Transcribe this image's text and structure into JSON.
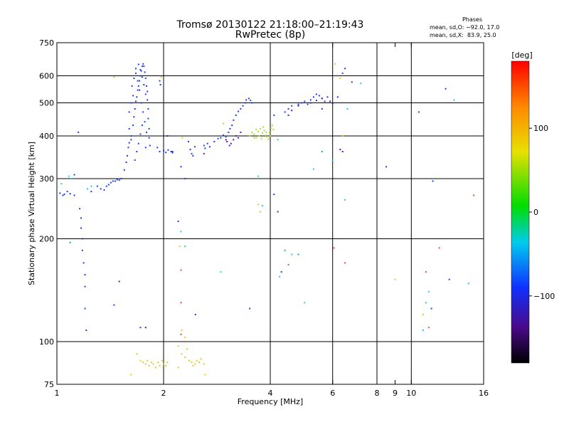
{
  "header": {
    "title_line1": "Tromsø 20130122 21:18:00–21:19:43",
    "title_line2": "RwPretec (8p)",
    "phases_title": "Phases",
    "phases_o": "mean, sd,O: −92.0, 17.0",
    "phases_x": "mean, sd,X:  83.9, 25.0"
  },
  "colorbar": {
    "label": "[deg]",
    "ticks": [
      "100",
      "0",
      "−100"
    ],
    "tick_values": [
      100,
      0,
      -100
    ],
    "range": [
      -180,
      180
    ]
  },
  "chart_data": {
    "type": "scatter",
    "xlabel": "Frequency [MHz]",
    "ylabel": "Stationary phase Virtual Height [km]",
    "x_scale": "log",
    "y_scale": "log",
    "xlim": [
      1,
      16
    ],
    "ylim": [
      75,
      750
    ],
    "x_ticks": [
      1,
      2,
      4,
      6,
      8,
      9,
      10,
      16
    ],
    "x_tick_labels": [
      "1",
      "2",
      "4",
      "6",
      "8",
      "9",
      "10",
      "16"
    ],
    "x_gridlines": [
      2,
      4,
      6,
      8,
      10
    ],
    "y_ticks": [
      75,
      100,
      200,
      300,
      400,
      500,
      600,
      750
    ],
    "y_tick_labels": [
      "75",
      "100",
      "200",
      "300",
      "400",
      "500",
      "600",
      "750"
    ],
    "y_gridlines": [
      100,
      200,
      300,
      400,
      500,
      600
    ],
    "grid": true,
    "series": [
      {
        "color": "#1b3fe6",
        "points": [
          [
            1.02,
            272
          ],
          [
            1.04,
            268
          ],
          [
            1.05,
            270
          ],
          [
            1.07,
            275
          ],
          [
            1.09,
            271
          ],
          [
            1.12,
            268
          ],
          [
            1.15,
            410
          ],
          [
            1.16,
            245
          ],
          [
            1.17,
            230
          ],
          [
            1.17,
            215
          ],
          [
            1.18,
            200
          ],
          [
            1.18,
            185
          ],
          [
            1.19,
            170
          ],
          [
            1.2,
            157
          ],
          [
            1.2,
            145
          ],
          [
            1.2,
            125
          ],
          [
            1.21,
            108
          ],
          [
            1.12,
            308
          ],
          [
            1.25,
            275
          ],
          [
            1.3,
            285
          ],
          [
            1.33,
            280
          ],
          [
            1.36,
            278
          ],
          [
            1.38,
            285
          ],
          [
            1.4,
            288
          ],
          [
            1.42,
            292
          ],
          [
            1.44,
            295
          ],
          [
            1.46,
            295
          ],
          [
            1.48,
            298
          ],
          [
            1.5,
            297
          ],
          [
            1.52,
            300
          ],
          [
            1.55,
            318
          ],
          [
            1.57,
            335
          ],
          [
            1.58,
            350
          ],
          [
            1.59,
            370
          ],
          [
            1.6,
            382
          ],
          [
            1.62,
            400
          ],
          [
            1.64,
            430
          ],
          [
            1.65,
            455
          ],
          [
            1.66,
            480
          ],
          [
            1.67,
            505
          ],
          [
            1.68,
            520
          ],
          [
            1.69,
            545
          ],
          [
            1.7,
            560
          ],
          [
            1.71,
            580
          ],
          [
            1.72,
            600
          ],
          [
            1.73,
            620
          ],
          [
            1.74,
            640
          ],
          [
            1.75,
            650
          ],
          [
            1.76,
            640
          ],
          [
            1.77,
            615
          ],
          [
            1.78,
            590
          ],
          [
            1.79,
            560
          ],
          [
            1.8,
            540
          ],
          [
            1.8,
            510
          ],
          [
            1.81,
            480
          ],
          [
            1.81,
            450
          ],
          [
            1.82,
            420
          ],
          [
            1.82,
            395
          ],
          [
            1.83,
            375
          ],
          [
            1.67,
            610
          ],
          [
            1.69,
            580
          ],
          [
            1.71,
            545
          ],
          [
            1.73,
            500
          ],
          [
            1.75,
            470
          ],
          [
            1.77,
            440
          ],
          [
            1.79,
            410
          ],
          [
            1.66,
            340
          ],
          [
            1.68,
            360
          ],
          [
            1.7,
            380
          ],
          [
            1.72,
            405
          ],
          [
            1.74,
            430
          ],
          [
            1.63,
            560
          ],
          [
            1.65,
            590
          ],
          [
            1.67,
            630
          ],
          [
            1.7,
            648
          ],
          [
            1.72,
            625
          ],
          [
            1.74,
            595
          ],
          [
            1.76,
            565
          ],
          [
            1.78,
            530
          ],
          [
            1.6,
            470
          ],
          [
            1.62,
            500
          ],
          [
            1.64,
            525
          ],
          [
            1.6,
            420
          ],
          [
            1.62,
            390
          ],
          [
            1.95,
            580
          ],
          [
            1.96,
            565
          ],
          [
            1.78,
            370
          ],
          [
            1.92,
            370
          ],
          [
            1.95,
            360
          ],
          [
            2.0,
            362
          ],
          [
            2.03,
            358
          ],
          [
            2.06,
            364
          ],
          [
            2.1,
            360
          ],
          [
            2.12,
            357
          ],
          [
            2.38,
            365
          ],
          [
            2.4,
            355
          ],
          [
            2.42,
            350
          ],
          [
            2.45,
            372
          ],
          [
            2.6,
            375
          ],
          [
            2.62,
            368
          ],
          [
            2.66,
            380
          ],
          [
            2.7,
            372
          ],
          [
            2.78,
            385
          ],
          [
            2.85,
            393
          ],
          [
            2.9,
            395
          ],
          [
            2.95,
            402
          ],
          [
            3.0,
            398
          ],
          [
            3.05,
            410
          ],
          [
            3.08,
            420
          ],
          [
            3.12,
            430
          ],
          [
            3.15,
            445
          ],
          [
            3.2,
            460
          ],
          [
            3.25,
            472
          ],
          [
            3.3,
            480
          ],
          [
            3.35,
            490
          ],
          [
            3.4,
            500
          ],
          [
            3.42,
            510
          ],
          [
            3.48,
            515
          ],
          [
            3.52,
            508
          ],
          [
            3.55,
            500
          ],
          [
            4.1,
            460
          ],
          [
            4.4,
            470
          ],
          [
            4.5,
            480
          ],
          [
            4.6,
            490
          ],
          [
            4.8,
            495
          ],
          [
            4.9,
            500
          ],
          [
            5.0,
            505
          ],
          [
            5.1,
            495
          ],
          [
            5.2,
            510
          ],
          [
            5.3,
            520
          ],
          [
            5.4,
            530
          ],
          [
            5.5,
            525
          ],
          [
            5.6,
            515
          ],
          [
            5.7,
            505
          ],
          [
            5.8,
            520
          ],
          [
            2.2,
            225
          ],
          [
            2.24,
            325
          ],
          [
            2.3,
            300
          ],
          [
            2.35,
            385
          ],
          [
            4.1,
            270
          ],
          [
            4.2,
            240
          ],
          [
            4.3,
            160
          ],
          [
            3.5,
            125
          ],
          [
            1.45,
            128
          ],
          [
            1.72,
            110
          ],
          [
            2.46,
            120
          ],
          [
            5.6,
            480
          ],
          [
            6.2,
            520
          ],
          [
            6.4,
            610
          ],
          [
            6.5,
            630
          ],
          [
            6.8,
            575
          ],
          [
            8.5,
            325
          ],
          [
            10.5,
            470
          ],
          [
            11.5,
            295
          ],
          [
            12.8,
            152
          ],
          [
            12.5,
            550
          ],
          [
            11.4,
            125
          ]
        ]
      },
      {
        "color": "#5a12a8",
        "points": [
          [
            1.5,
            150
          ],
          [
            1.78,
            110
          ],
          [
            2.05,
            400
          ],
          [
            2.12,
            360
          ],
          [
            3.0,
            390
          ],
          [
            3.02,
            385
          ],
          [
            3.07,
            375
          ],
          [
            3.1,
            380
          ],
          [
            3.15,
            390
          ],
          [
            3.2,
            400
          ],
          [
            3.25,
            395
          ],
          [
            3.3,
            410
          ],
          [
            4.5,
            460
          ],
          [
            4.6,
            475
          ],
          [
            4.8,
            490
          ],
          [
            5.2,
            500
          ],
          [
            5.4,
            508
          ],
          [
            5.6,
            515
          ],
          [
            5.9,
            505
          ],
          [
            6.0,
            498
          ],
          [
            6.3,
            365
          ],
          [
            6.4,
            360
          ],
          [
            2.6,
            355
          ]
        ]
      },
      {
        "color": "#a4e22a",
        "points": [
          [
            3.5,
            400
          ],
          [
            3.55,
            410
          ],
          [
            3.6,
            405
          ],
          [
            3.65,
            395
          ],
          [
            3.7,
            412
          ],
          [
            3.75,
            420
          ],
          [
            3.8,
            408
          ],
          [
            3.85,
            415
          ],
          [
            3.88,
            402
          ],
          [
            3.92,
            398
          ],
          [
            3.95,
            392
          ],
          [
            3.98,
            408
          ],
          [
            4.02,
            422
          ],
          [
            4.05,
            430
          ],
          [
            4.08,
            418
          ],
          [
            3.6,
            395
          ],
          [
            3.65,
            418
          ],
          [
            3.72,
            400
          ],
          [
            3.78,
            393
          ],
          [
            3.82,
            425
          ],
          [
            3.9,
            410
          ],
          [
            4.0,
            400
          ],
          [
            3.7,
            252
          ],
          [
            3.75,
            240
          ],
          [
            1.45,
            595
          ],
          [
            1.97,
            595
          ],
          [
            2.95,
            435
          ]
        ]
      },
      {
        "color": "#e3c72b",
        "points": [
          [
            1.72,
            88
          ],
          [
            1.75,
            87
          ],
          [
            1.78,
            86
          ],
          [
            1.8,
            88
          ],
          [
            1.82,
            85
          ],
          [
            1.85,
            87
          ],
          [
            1.87,
            86
          ],
          [
            1.9,
            84
          ],
          [
            1.93,
            87
          ],
          [
            1.95,
            85
          ],
          [
            1.98,
            88
          ],
          [
            2.0,
            86
          ],
          [
            2.03,
            85
          ],
          [
            2.05,
            87
          ],
          [
            2.2,
            97
          ],
          [
            2.25,
            92
          ],
          [
            2.3,
            90
          ],
          [
            2.33,
            95
          ],
          [
            2.36,
            88
          ],
          [
            2.4,
            87
          ],
          [
            2.42,
            85
          ],
          [
            2.45,
            86
          ],
          [
            2.48,
            88
          ],
          [
            2.52,
            87
          ],
          [
            2.55,
            89
          ],
          [
            2.6,
            86
          ],
          [
            2.62,
            80
          ],
          [
            2.2,
            84
          ],
          [
            2.3,
            103
          ],
          [
            2.25,
            108
          ],
          [
            1.62,
            80
          ],
          [
            1.68,
            92
          ],
          [
            2.22,
            190
          ],
          [
            6.1,
            650
          ],
          [
            6.3,
            590
          ],
          [
            6.4,
            400
          ],
          [
            2.26,
            395
          ],
          [
            9.0,
            152
          ],
          [
            10.8,
            120
          ]
        ]
      },
      {
        "color": "#e8551e",
        "points": [
          [
            2.24,
            105
          ],
          [
            2.24,
            130
          ],
          [
            2.24,
            162
          ],
          [
            4.5,
            168
          ],
          [
            6.05,
            188
          ],
          [
            6.5,
            170
          ],
          [
            11.2,
            110
          ],
          [
            11.0,
            160
          ],
          [
            12.0,
            188
          ],
          [
            15.0,
            268
          ],
          [
            2.3,
            100
          ]
        ]
      },
      {
        "color": "#28c8e8",
        "points": [
          [
            1.03,
            290
          ],
          [
            1.08,
            305
          ],
          [
            1.1,
            300
          ],
          [
            1.25,
            285
          ],
          [
            1.22,
            280
          ],
          [
            2.24,
            210
          ],
          [
            2.3,
            190
          ],
          [
            2.9,
            160
          ],
          [
            3.7,
            305
          ],
          [
            3.8,
            250
          ],
          [
            4.2,
            390
          ],
          [
            4.25,
            155
          ],
          [
            4.6,
            180
          ],
          [
            5.0,
            130
          ],
          [
            5.3,
            320
          ],
          [
            6.0,
            340
          ],
          [
            6.5,
            260
          ],
          [
            6.6,
            480
          ],
          [
            7.2,
            570
          ],
          [
            10.8,
            108
          ],
          [
            11.0,
            130
          ],
          [
            11.2,
            140
          ],
          [
            13.2,
            510
          ],
          [
            14.5,
            148
          ]
        ]
      },
      {
        "color": "#20b840",
        "points": [
          [
            1.09,
            195
          ],
          [
            4.8,
            180
          ],
          [
            4.4,
            185
          ],
          [
            5.6,
            360
          ]
        ]
      }
    ]
  }
}
